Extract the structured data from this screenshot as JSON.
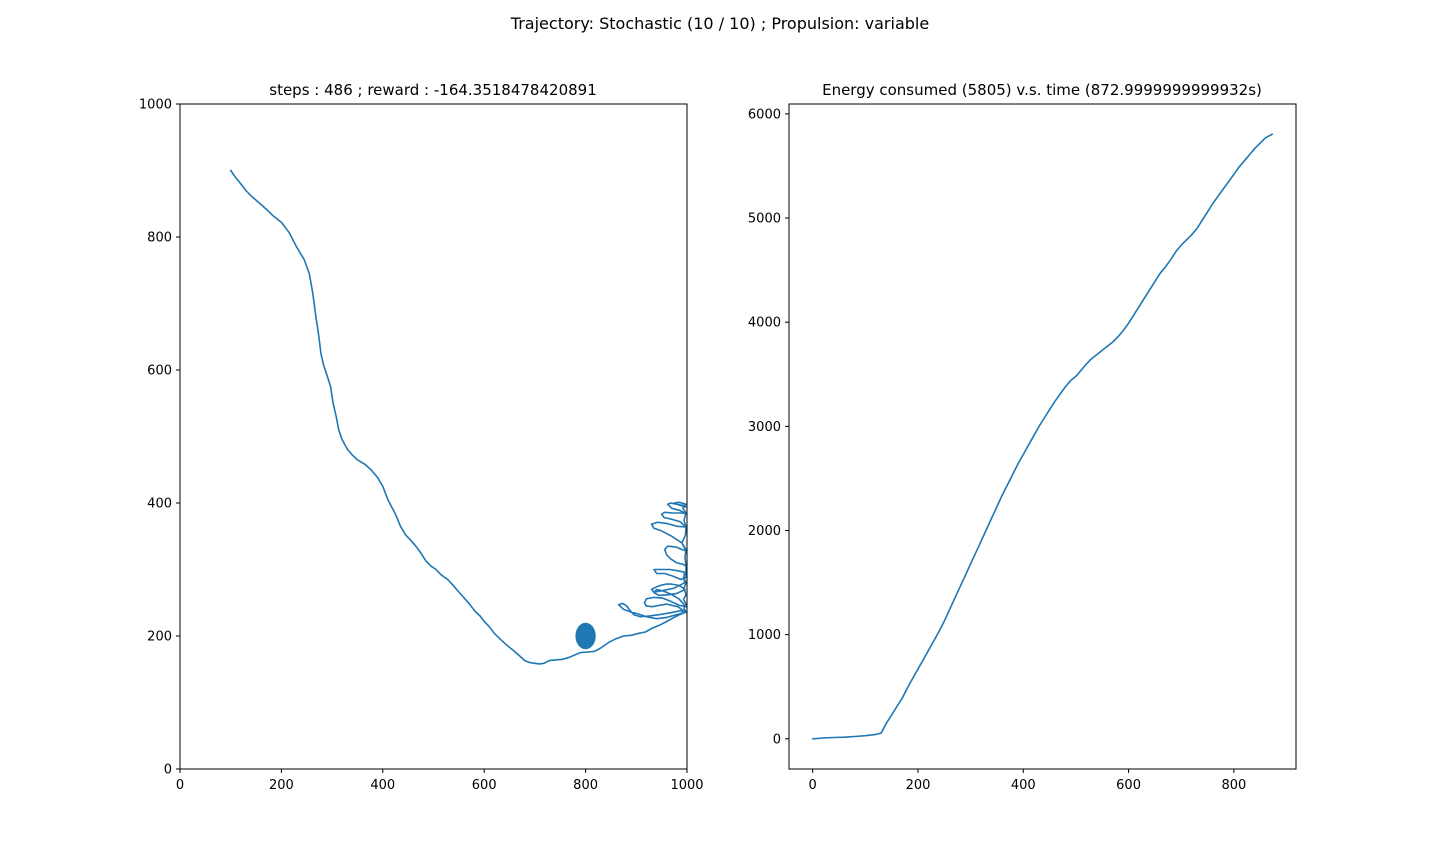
{
  "suptitle": "Trajectory: Stochastic (10 / 10) ; Propulsion: variable",
  "colors": {
    "series": "#1f77b4",
    "axes": "#000000",
    "background": "#ffffff"
  },
  "chart_data": [
    {
      "type": "line",
      "title": "steps : 486 ; reward : -164.3518478420891",
      "xlabel": "",
      "ylabel": "",
      "xlim": [
        0,
        1000
      ],
      "ylim": [
        0,
        1000
      ],
      "xticks": [
        0,
        200,
        400,
        600,
        800,
        1000
      ],
      "yticks": [
        0,
        200,
        400,
        600,
        800,
        1000
      ],
      "grid": false,
      "target": {
        "x": 800,
        "y": 200,
        "radius": 20
      },
      "series": [
        {
          "points": [
            [
              100,
              900
            ],
            [
              110,
              889
            ],
            [
              120,
              880
            ],
            [
              130,
              870
            ],
            [
              140,
              862
            ],
            [
              155,
              852
            ],
            [
              170,
              842
            ],
            [
              185,
              831
            ],
            [
              200,
              822
            ],
            [
              215,
              807
            ],
            [
              230,
              785
            ],
            [
              245,
              766
            ],
            [
              255,
              745
            ],
            [
              262,
              715
            ],
            [
              268,
              680
            ],
            [
              274,
              650
            ],
            [
              278,
              625
            ],
            [
              283,
              608
            ],
            [
              290,
              592
            ],
            [
              297,
              575
            ],
            [
              302,
              550
            ],
            [
              308,
              530
            ],
            [
              313,
              510
            ],
            [
              320,
              495
            ],
            [
              330,
              481
            ],
            [
              340,
              472
            ],
            [
              350,
              465
            ],
            [
              365,
              458
            ],
            [
              378,
              449
            ],
            [
              390,
              438
            ],
            [
              400,
              425
            ],
            [
              410,
              405
            ],
            [
              425,
              383
            ],
            [
              435,
              365
            ],
            [
              445,
              352
            ],
            [
              455,
              344
            ],
            [
              465,
              335
            ],
            [
              475,
              325
            ],
            [
              485,
              313
            ],
            [
              495,
              305
            ],
            [
              505,
              300
            ],
            [
              515,
              292
            ],
            [
              528,
              285
            ],
            [
              540,
              275
            ],
            [
              550,
              266
            ],
            [
              562,
              256
            ],
            [
              572,
              247
            ],
            [
              582,
              237
            ],
            [
              592,
              230
            ],
            [
              600,
              222
            ],
            [
              610,
              214
            ],
            [
              620,
              204
            ],
            [
              632,
              195
            ],
            [
              645,
              186
            ],
            [
              658,
              178
            ],
            [
              670,
              170
            ],
            [
              680,
              163
            ],
            [
              690,
              160
            ],
            [
              700,
              159
            ],
            [
              708,
              158
            ],
            [
              718,
              159
            ],
            [
              728,
              163
            ],
            [
              740,
              164
            ],
            [
              755,
              165
            ],
            [
              768,
              168
            ],
            [
              780,
              172
            ],
            [
              790,
              175
            ],
            [
              805,
              176
            ],
            [
              818,
              177
            ],
            [
              830,
              182
            ],
            [
              845,
              190
            ],
            [
              860,
              196
            ],
            [
              875,
              200
            ],
            [
              890,
              201
            ],
            [
              905,
              204
            ],
            [
              918,
              206
            ],
            [
              932,
              212
            ],
            [
              945,
              216
            ],
            [
              958,
              221
            ],
            [
              970,
              226
            ],
            [
              985,
              232
            ],
            [
              998,
              236
            ],
            [
              988,
              238
            ],
            [
              968,
              235
            ],
            [
              945,
              232
            ],
            [
              925,
              230
            ],
            [
              908,
              229
            ],
            [
              895,
              232
            ],
            [
              886,
              240
            ],
            [
              880,
              246
            ],
            [
              873,
              249
            ],
            [
              865,
              247
            ],
            [
              875,
              240
            ],
            [
              890,
              236
            ],
            [
              905,
              233
            ],
            [
              920,
              229
            ],
            [
              940,
              226
            ],
            [
              960,
              228
            ],
            [
              980,
              232
            ],
            [
              997,
              236
            ],
            [
              982,
              244
            ],
            [
              960,
              248
            ],
            [
              945,
              246
            ],
            [
              932,
              244
            ],
            [
              920,
              245
            ],
            [
              916,
              250
            ],
            [
              920,
              256
            ],
            [
              935,
              258
            ],
            [
              952,
              257
            ],
            [
              968,
              252
            ],
            [
              985,
              246
            ],
            [
              998,
              244
            ],
            [
              984,
              256
            ],
            [
              968,
              263
            ],
            [
              952,
              268
            ],
            [
              940,
              270
            ],
            [
              935,
              265
            ],
            [
              945,
              261
            ],
            [
              962,
              262
            ],
            [
              980,
              264
            ],
            [
              996,
              270
            ],
            [
              985,
              276
            ],
            [
              970,
              278
            ],
            [
              960,
              278
            ],
            [
              952,
              277
            ],
            [
              940,
              274
            ],
            [
              930,
              270
            ],
            [
              935,
              266
            ],
            [
              950,
              268
            ],
            [
              975,
              272
            ],
            [
              995,
              280
            ],
            [
              994,
              290
            ],
            [
              995,
              296
            ],
            [
              982,
              298
            ],
            [
              966,
              300
            ],
            [
              948,
              300
            ],
            [
              935,
              300
            ],
            [
              940,
              294
            ],
            [
              956,
              294
            ],
            [
              972,
              290
            ],
            [
              988,
              285
            ],
            [
              998,
              288
            ],
            [
              998,
              305
            ],
            [
              992,
              308
            ],
            [
              980,
              310
            ],
            [
              968,
              316
            ],
            [
              960,
              322
            ],
            [
              956,
              330
            ],
            [
              962,
              335
            ],
            [
              978,
              334
            ],
            [
              990,
              330
            ],
            [
              998,
              328
            ],
            [
              990,
              340
            ],
            [
              970,
              350
            ],
            [
              950,
              358
            ],
            [
              935,
              362
            ],
            [
              930,
              368
            ],
            [
              942,
              371
            ],
            [
              962,
              369
            ],
            [
              980,
              365
            ],
            [
              998,
              364
            ],
            [
              986,
              372
            ],
            [
              968,
              376
            ],
            [
              955,
              378
            ],
            [
              950,
              383
            ],
            [
              956,
              386
            ],
            [
              972,
              385
            ],
            [
              990,
              385
            ],
            [
              998,
              384
            ],
            [
              985,
              389
            ],
            [
              970,
              392
            ],
            [
              962,
              398
            ],
            [
              968,
              400
            ],
            [
              980,
              398
            ],
            [
              994,
              396
            ],
            [
              998,
              394
            ],
            [
              984,
              397
            ],
            [
              975,
              400
            ],
            [
              985,
              401
            ],
            [
              998,
              398
            ],
            [
              992,
              392
            ],
            [
              998,
              385
            ],
            [
              994,
              374
            ],
            [
              998,
              364
            ],
            [
              997,
              352
            ],
            [
              990,
              340
            ],
            [
              998,
              330
            ],
            [
              996,
              318
            ],
            [
              998,
              305
            ],
            [
              998,
              296
            ],
            [
              993,
              289
            ],
            [
              998,
              280
            ],
            [
              994,
              272
            ],
            [
              998,
              262
            ],
            [
              993,
              255
            ],
            [
              998,
              248
            ],
            [
              994,
              242
            ],
            [
              998,
              236
            ]
          ]
        }
      ]
    },
    {
      "type": "line",
      "title": "Energy consumed (5805) v.s. time (872.9999999999932s)",
      "xlabel": "",
      "ylabel": "",
      "xlim": [
        -45,
        918
      ],
      "ylim": [
        -290,
        6095
      ],
      "xticks": [
        0,
        200,
        400,
        600,
        800
      ],
      "yticks": [
        0,
        1000,
        2000,
        3000,
        4000,
        5000,
        6000
      ],
      "grid": false,
      "series": [
        {
          "points": [
            [
              0,
              0
            ],
            [
              20,
              8
            ],
            [
              40,
              12
            ],
            [
              60,
              15
            ],
            [
              80,
              22
            ],
            [
              100,
              30
            ],
            [
              120,
              42
            ],
            [
              130,
              55
            ],
            [
              140,
              150
            ],
            [
              150,
              230
            ],
            [
              160,
              310
            ],
            [
              170,
              390
            ],
            [
              180,
              490
            ],
            [
              190,
              580
            ],
            [
              200,
              670
            ],
            [
              210,
              760
            ],
            [
              220,
              850
            ],
            [
              230,
              940
            ],
            [
              240,
              1030
            ],
            [
              250,
              1130
            ],
            [
              260,
              1240
            ],
            [
              270,
              1350
            ],
            [
              280,
              1460
            ],
            [
              290,
              1570
            ],
            [
              300,
              1680
            ],
            [
              310,
              1790
            ],
            [
              320,
              1900
            ],
            [
              330,
              2010
            ],
            [
              340,
              2120
            ],
            [
              350,
              2230
            ],
            [
              360,
              2340
            ],
            [
              370,
              2440
            ],
            [
              380,
              2540
            ],
            [
              390,
              2640
            ],
            [
              400,
              2730
            ],
            [
              410,
              2820
            ],
            [
              420,
              2910
            ],
            [
              430,
              3000
            ],
            [
              440,
              3080
            ],
            [
              450,
              3160
            ],
            [
              460,
              3240
            ],
            [
              470,
              3310
            ],
            [
              480,
              3380
            ],
            [
              490,
              3440
            ],
            [
              500,
              3480
            ],
            [
              510,
              3540
            ],
            [
              520,
              3600
            ],
            [
              530,
              3650
            ],
            [
              540,
              3690
            ],
            [
              550,
              3730
            ],
            [
              560,
              3770
            ],
            [
              570,
              3810
            ],
            [
              580,
              3860
            ],
            [
              590,
              3920
            ],
            [
              600,
              3990
            ],
            [
              610,
              4070
            ],
            [
              620,
              4150
            ],
            [
              630,
              4230
            ],
            [
              640,
              4310
            ],
            [
              650,
              4390
            ],
            [
              660,
              4470
            ],
            [
              670,
              4530
            ],
            [
              680,
              4600
            ],
            [
              690,
              4680
            ],
            [
              700,
              4740
            ],
            [
              710,
              4790
            ],
            [
              720,
              4840
            ],
            [
              730,
              4900
            ],
            [
              740,
              4980
            ],
            [
              750,
              5060
            ],
            [
              760,
              5140
            ],
            [
              770,
              5210
            ],
            [
              780,
              5280
            ],
            [
              790,
              5350
            ],
            [
              800,
              5420
            ],
            [
              810,
              5490
            ],
            [
              820,
              5550
            ],
            [
              830,
              5610
            ],
            [
              840,
              5670
            ],
            [
              850,
              5720
            ],
            [
              860,
              5770
            ],
            [
              873,
              5805
            ]
          ]
        }
      ]
    }
  ]
}
